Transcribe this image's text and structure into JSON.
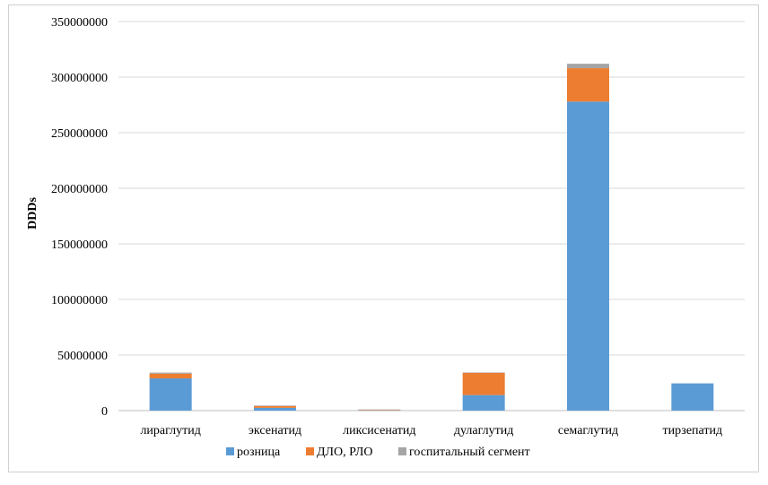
{
  "chart_data": {
    "type": "bar",
    "stacked": true,
    "categories": [
      "лираглутид",
      "эксенатид",
      "ликсисенатид",
      "дулаглутид",
      "семаглутид",
      "тирзепатид"
    ],
    "series": [
      {
        "name": "розница",
        "color": "#5b9bd5",
        "values": [
          29000000,
          2500000,
          300000,
          14000000,
          278000000,
          24500000
        ]
      },
      {
        "name": "ДЛО, РЛО",
        "color": "#ed7d31",
        "values": [
          4200000,
          1700000,
          200000,
          20000000,
          30000000,
          0
        ]
      },
      {
        "name": "госпитальный сегмент",
        "color": "#a5a5a5",
        "values": [
          1000000,
          300000,
          500000,
          300000,
          4000000,
          0
        ]
      }
    ],
    "ylabel": "DDDs",
    "xlabel": "",
    "ylim": [
      0,
      350000000
    ],
    "yticks": [
      "0",
      "50000000",
      "100000000",
      "150000000",
      "200000000",
      "250000000",
      "300000000",
      "350000000"
    ],
    "grid": true,
    "legend": "bottom"
  }
}
